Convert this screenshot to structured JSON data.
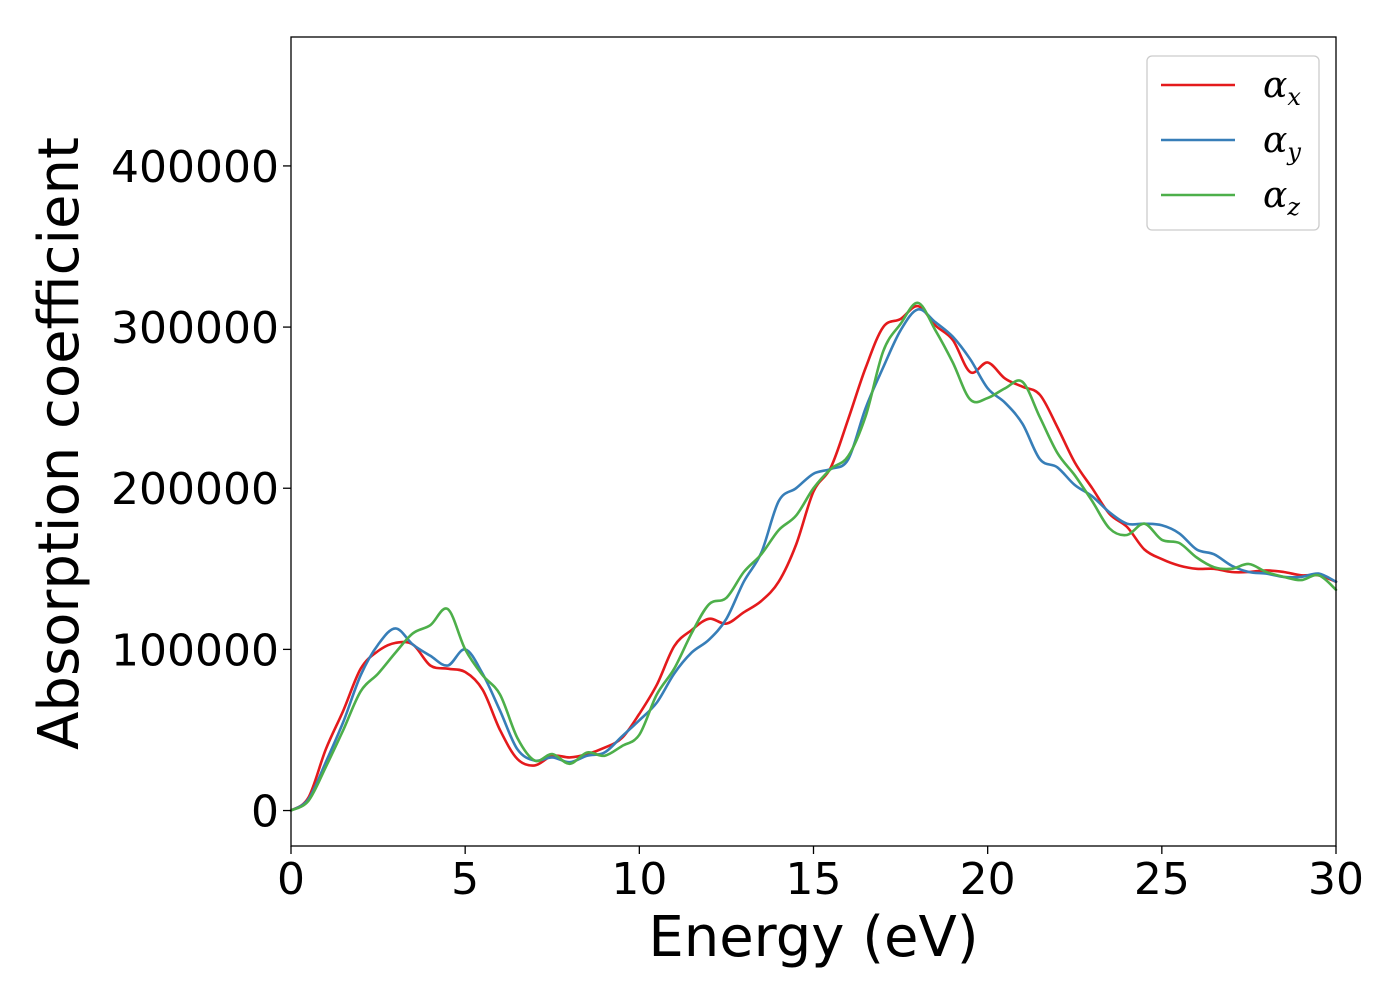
{
  "chart_data": {
    "type": "line",
    "xlabel": "Energy (eV)",
    "ylabel": "Absorption coefficient",
    "xlim": [
      0,
      30
    ],
    "ylim": [
      -22000,
      480000
    ],
    "xticks": [
      0,
      5,
      10,
      15,
      20,
      25,
      30
    ],
    "xtick_labels": [
      "0",
      "5",
      "10",
      "15",
      "20",
      "25",
      "30"
    ],
    "yticks": [
      0,
      100000,
      200000,
      300000,
      400000
    ],
    "ytick_labels": [
      "0",
      "100000",
      "200000",
      "300000",
      "400000"
    ],
    "grid": false,
    "legend_position": "top-right",
    "series": [
      {
        "name": "αx",
        "legend_base": "α",
        "legend_sub": "x",
        "color": "#e41a1c",
        "x": [
          0,
          0.5,
          1.0,
          1.5,
          2.0,
          2.5,
          3.0,
          3.5,
          4.0,
          4.5,
          5.0,
          5.5,
          6.0,
          6.5,
          7.0,
          7.5,
          8.0,
          8.5,
          9.0,
          9.5,
          10.0,
          10.5,
          11.0,
          11.5,
          12.0,
          12.5,
          13.0,
          13.5,
          14.0,
          14.5,
          15.0,
          15.5,
          16.0,
          16.5,
          17.0,
          17.5,
          18.0,
          18.5,
          19.0,
          19.5,
          20.0,
          20.5,
          21.0,
          21.5,
          22.0,
          22.5,
          23.0,
          23.5,
          24.0,
          24.5,
          25.0,
          25.5,
          26.0,
          26.5,
          27.0,
          27.5,
          28.0,
          28.5,
          29.0,
          29.5,
          30.0
        ],
        "values": [
          0,
          8000,
          38000,
          62000,
          88000,
          99000,
          104000,
          103000,
          90000,
          88000,
          86000,
          75000,
          50000,
          32000,
          28000,
          34000,
          33000,
          35000,
          39000,
          45000,
          60000,
          78000,
          102000,
          112000,
          119000,
          116000,
          123000,
          130000,
          142000,
          165000,
          198000,
          213000,
          243000,
          275000,
          300000,
          305000,
          313000,
          301000,
          292000,
          272000,
          278000,
          268000,
          263000,
          258000,
          238000,
          216000,
          200000,
          184000,
          176000,
          162000,
          156000,
          152000,
          150000,
          150000,
          148000,
          148000,
          149000,
          148000,
          146000,
          146000,
          142000
        ]
      },
      {
        "name": "αy",
        "legend_base": "α",
        "legend_sub": "y",
        "color": "#377eb8",
        "x": [
          0,
          0.5,
          1.0,
          1.5,
          2.0,
          2.5,
          3.0,
          3.5,
          4.0,
          4.5,
          5.0,
          5.5,
          6.0,
          6.5,
          7.0,
          7.5,
          8.0,
          8.5,
          9.0,
          9.5,
          10.0,
          10.5,
          11.0,
          11.5,
          12.0,
          12.5,
          13.0,
          13.5,
          14.0,
          14.5,
          15.0,
          15.5,
          16.0,
          16.5,
          17.0,
          17.5,
          18.0,
          18.5,
          19.0,
          19.5,
          20.0,
          20.5,
          21.0,
          21.5,
          22.0,
          22.5,
          23.0,
          23.5,
          24.0,
          24.5,
          25.0,
          25.5,
          26.0,
          26.5,
          27.0,
          27.5,
          28.0,
          28.5,
          29.0,
          29.5,
          30.0
        ],
        "values": [
          0,
          7000,
          30000,
          55000,
          84000,
          103000,
          113000,
          103000,
          96000,
          90000,
          100000,
          85000,
          62000,
          38000,
          31000,
          33000,
          30000,
          34000,
          36000,
          46000,
          56000,
          67000,
          85000,
          98000,
          106000,
          119000,
          142000,
          160000,
          192000,
          200000,
          209000,
          212000,
          218000,
          250000,
          275000,
          298000,
          311000,
          303000,
          294000,
          280000,
          262000,
          253000,
          240000,
          218000,
          213000,
          202000,
          195000,
          185000,
          178000,
          178000,
          177000,
          172000,
          162000,
          159000,
          152000,
          148000,
          147000,
          145000,
          145000,
          147000,
          142000
        ]
      },
      {
        "name": "αz",
        "legend_base": "α",
        "legend_sub": "z",
        "color": "#4daf4a",
        "x": [
          0,
          0.5,
          1.0,
          1.5,
          2.0,
          2.5,
          3.0,
          3.5,
          4.0,
          4.5,
          5.0,
          5.5,
          6.0,
          6.5,
          7.0,
          7.5,
          8.0,
          8.5,
          9.0,
          9.5,
          10.0,
          10.5,
          11.0,
          11.5,
          12.0,
          12.5,
          13.0,
          13.5,
          14.0,
          14.5,
          15.0,
          15.5,
          16.0,
          16.5,
          17.0,
          17.5,
          18.0,
          18.5,
          19.0,
          19.5,
          20.0,
          20.5,
          21.0,
          21.5,
          22.0,
          22.5,
          23.0,
          23.5,
          24.0,
          24.5,
          25.0,
          25.5,
          26.0,
          26.5,
          27.0,
          27.5,
          28.0,
          28.5,
          29.0,
          29.5,
          30.0
        ],
        "values": [
          0,
          6000,
          27000,
          50000,
          74000,
          85000,
          98000,
          110000,
          115000,
          125000,
          100000,
          84000,
          72000,
          45000,
          31000,
          35000,
          29000,
          36000,
          34000,
          40000,
          47000,
          72000,
          88000,
          110000,
          128000,
          132000,
          148000,
          159000,
          174000,
          183000,
          200000,
          212000,
          220000,
          245000,
          285000,
          302000,
          315000,
          298000,
          278000,
          255000,
          256000,
          262000,
          266000,
          244000,
          222000,
          208000,
          192000,
          175000,
          171000,
          178000,
          168000,
          166000,
          157000,
          151000,
          150000,
          153000,
          148000,
          145000,
          143000,
          146000,
          137000
        ]
      }
    ]
  }
}
